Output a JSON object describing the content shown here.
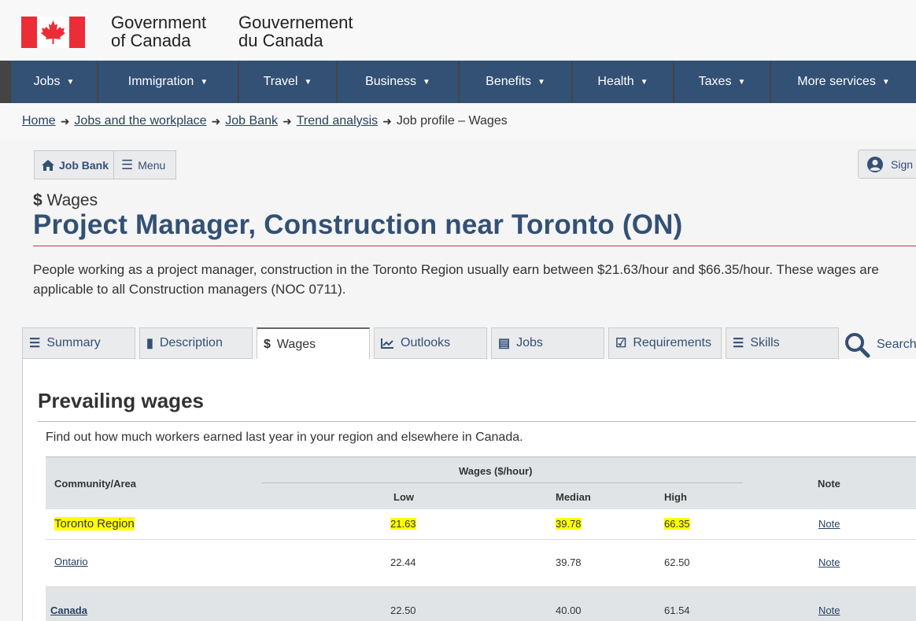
{
  "header": {
    "signature_en_line1": "Government",
    "signature_en_line2": "of Canada",
    "signature_fr_line1": "Gouvernement",
    "signature_fr_line2": "du Canada",
    "flag_colors": {
      "red": "#eb2d37",
      "white": "#ffffff"
    }
  },
  "menu": {
    "items": [
      "Jobs",
      "Immigration",
      "Travel",
      "Business",
      "Benefits",
      "Health",
      "Taxes",
      "More services"
    ]
  },
  "breadcrumb": {
    "links": [
      "Home",
      "Jobs and the workplace",
      "Job Bank",
      "Trend analysis"
    ],
    "current": "Job profile – Wages"
  },
  "jobbank": {
    "home_label": "Job Bank",
    "menu_label": "Menu",
    "signin_label": "Sign"
  },
  "page": {
    "kicker": "Wages",
    "title": "Project Manager, Construction near Toronto (ON)",
    "intro": "People working as a project manager, construction in the Toronto Region usually earn between $21.63/hour and $66.35/hour. These wages are applicable to all Construction managers (NOC 0711)."
  },
  "tabs": [
    {
      "label": "Summary",
      "icon": "list-icon"
    },
    {
      "label": "Description",
      "icon": "book-icon"
    },
    {
      "label": "Wages",
      "icon": "dollar-icon"
    },
    {
      "label": "Outlooks",
      "icon": "chart-icon"
    },
    {
      "label": "Jobs",
      "icon": "listbox-icon"
    },
    {
      "label": "Requirements",
      "icon": "checkbox-icon"
    },
    {
      "label": "Skills",
      "icon": "tasks-icon"
    }
  ],
  "search_label": "Search",
  "section": {
    "title": "Prevailing wages",
    "description": "Find out how much workers earned last year in your region and elsewhere in Canada."
  },
  "table": {
    "col_community": "Community/Area",
    "col_wages_group": "Wages ($/hour)",
    "col_low": "Low",
    "col_median": "Median",
    "col_high": "High",
    "col_note": "Note",
    "rows": [
      {
        "area": "Toronto Region",
        "low": "21.63",
        "median": "39.78",
        "high": "66.35",
        "note": "Note"
      },
      {
        "area": "Ontario",
        "low": "22.44",
        "median": "39.78",
        "high": "62.50",
        "note": "Note"
      },
      {
        "area": "Canada",
        "low": "22.50",
        "median": "40.00",
        "high": "61.54",
        "note": "Note"
      }
    ]
  }
}
